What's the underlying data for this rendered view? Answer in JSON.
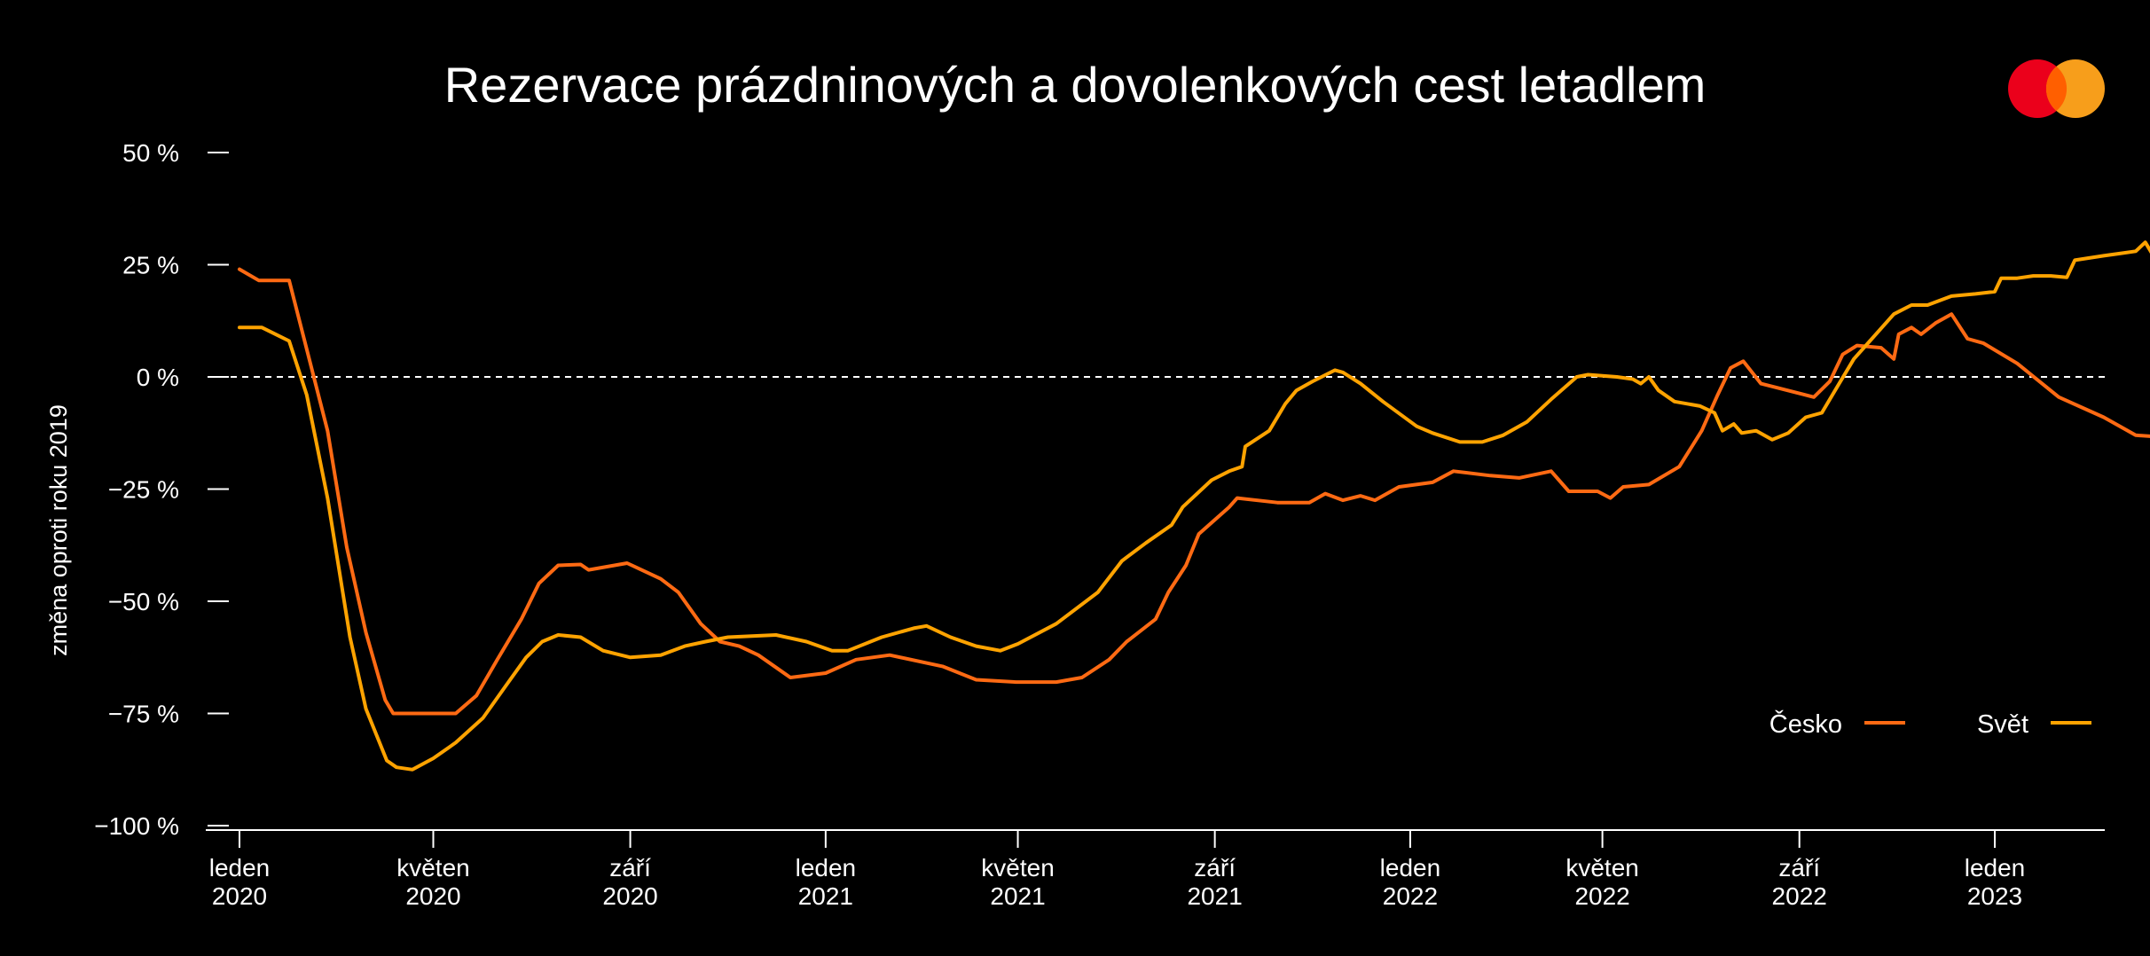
{
  "logo": {
    "name": "mastercard-logo",
    "colors": [
      "#eb001b",
      "#f79e1b",
      "#ff5f00"
    ]
  },
  "chart_data": {
    "type": "line",
    "title": "Rezervace prázdninových a dovolenkových cest letadlem",
    "ylabel": "změna oproti roku 2019",
    "xlabel": "",
    "ylim": [
      -100,
      50
    ],
    "xlim": [
      "2020-01-01",
      "2023-04-20"
    ],
    "y_ticks": [
      {
        "value": 50,
        "label": "50 %"
      },
      {
        "value": 25,
        "label": "25 %"
      },
      {
        "value": 0,
        "label": "0 %"
      },
      {
        "value": -25,
        "label": "−25 %"
      },
      {
        "value": -50,
        "label": "−50 %"
      },
      {
        "value": -75,
        "label": "−75 %"
      },
      {
        "value": -100,
        "label": "−100 %"
      }
    ],
    "x_ticks": [
      {
        "date": "2020-01-01",
        "month": "leden",
        "year": "2020"
      },
      {
        "date": "2020-05-01",
        "month": "květen",
        "year": "2020"
      },
      {
        "date": "2020-09-01",
        "month": "září",
        "year": "2020"
      },
      {
        "date": "2021-01-01",
        "month": "leden",
        "year": "2021"
      },
      {
        "date": "2021-05-01",
        "month": "květen",
        "year": "2021"
      },
      {
        "date": "2021-09-01",
        "month": "září",
        "year": "2021"
      },
      {
        "date": "2022-01-01",
        "month": "leden",
        "year": "2022"
      },
      {
        "date": "2022-05-01",
        "month": "květen",
        "year": "2022"
      },
      {
        "date": "2022-09-01",
        "month": "září",
        "year": "2022"
      },
      {
        "date": "2023-01-01",
        "month": "leden",
        "year": "2023"
      }
    ],
    "zero_line": "dashed",
    "grid": false,
    "legend": "bottom-right",
    "series": [
      {
        "name": "Česko",
        "color": "#ff6a13",
        "points": [
          [
            "2020-01-01",
            24
          ],
          [
            "2020-01-13",
            21.5
          ],
          [
            "2020-02-01",
            21.5
          ],
          [
            "2020-02-25",
            -12
          ],
          [
            "2020-03-08",
            -38
          ],
          [
            "2020-03-20",
            -57
          ],
          [
            "2020-04-01",
            -72
          ],
          [
            "2020-04-06",
            -75
          ],
          [
            "2020-05-01",
            -75
          ],
          [
            "2020-05-15",
            -75
          ],
          [
            "2020-05-28",
            -71
          ],
          [
            "2020-06-10",
            -63
          ],
          [
            "2020-06-25",
            -54
          ],
          [
            "2020-07-06",
            -46
          ],
          [
            "2020-07-18",
            -42
          ],
          [
            "2020-08-01",
            -41.8
          ],
          [
            "2020-08-06",
            -43
          ],
          [
            "2020-08-30",
            -41.5
          ],
          [
            "2020-09-20",
            -45
          ],
          [
            "2020-10-01",
            -48
          ],
          [
            "2020-10-15",
            -55
          ],
          [
            "2020-10-27",
            -59
          ],
          [
            "2020-11-08",
            -60
          ],
          [
            "2020-11-20",
            -62
          ],
          [
            "2020-12-10",
            -67
          ],
          [
            "2021-01-01",
            -66
          ],
          [
            "2021-01-20",
            -63
          ],
          [
            "2021-02-10",
            -62
          ],
          [
            "2021-03-15",
            -64.5
          ],
          [
            "2021-04-05",
            -67.5
          ],
          [
            "2021-04-30",
            -68
          ],
          [
            "2021-05-25",
            -68
          ],
          [
            "2021-06-10",
            -67
          ],
          [
            "2021-06-27",
            -63
          ],
          [
            "2021-07-08",
            -59
          ],
          [
            "2021-07-26",
            -54
          ],
          [
            "2021-08-03",
            -48
          ],
          [
            "2021-08-14",
            -42
          ],
          [
            "2021-08-22",
            -35
          ],
          [
            "2021-09-10",
            -29
          ],
          [
            "2021-09-15",
            -27
          ],
          [
            "2021-10-10",
            -28
          ],
          [
            "2021-10-30",
            -28
          ],
          [
            "2021-11-09",
            -26
          ],
          [
            "2021-11-20",
            -27.5
          ],
          [
            "2021-12-01",
            -26.5
          ],
          [
            "2021-12-10",
            -27.5
          ],
          [
            "2021-12-25",
            -24.5
          ],
          [
            "2022-01-15",
            -23.5
          ],
          [
            "2022-01-28",
            -21
          ],
          [
            "2022-02-20",
            -22
          ],
          [
            "2022-03-10",
            -22.5
          ],
          [
            "2022-03-30",
            -21
          ],
          [
            "2022-04-10",
            -25.5
          ],
          [
            "2022-04-28",
            -25.5
          ],
          [
            "2022-05-06",
            -27
          ],
          [
            "2022-05-14",
            -24.5
          ],
          [
            "2022-05-30",
            -24
          ],
          [
            "2022-06-18",
            -20
          ],
          [
            "2022-07-02",
            -12
          ],
          [
            "2022-07-12",
            -4
          ],
          [
            "2022-07-20",
            2
          ],
          [
            "2022-07-28",
            3.5
          ],
          [
            "2022-08-08",
            -1.5
          ],
          [
            "2022-09-10",
            -4.5
          ],
          [
            "2022-09-20",
            -1
          ],
          [
            "2022-09-28",
            5
          ],
          [
            "2022-10-07",
            7
          ],
          [
            "2022-10-22",
            6.5
          ],
          [
            "2022-10-30",
            4
          ],
          [
            "2022-11-02",
            9.5
          ],
          [
            "2022-11-10",
            11
          ],
          [
            "2022-11-16",
            9.5
          ],
          [
            "2022-11-25",
            12
          ],
          [
            "2022-12-05",
            14
          ],
          [
            "2022-12-15",
            8.5
          ],
          [
            "2022-12-25",
            7.5
          ],
          [
            "2023-01-15",
            3
          ],
          [
            "2023-02-10",
            -4.5
          ],
          [
            "2023-03-10",
            -9
          ],
          [
            "2023-03-30",
            -13
          ],
          [
            "2023-04-20",
            -13.5
          ]
        ]
      },
      {
        "name": "Svět",
        "color": "#ffa300",
        "points": [
          [
            "2020-01-01",
            11
          ],
          [
            "2020-01-15",
            11
          ],
          [
            "2020-02-01",
            8
          ],
          [
            "2020-02-12",
            -4
          ],
          [
            "2020-02-25",
            -27
          ],
          [
            "2020-03-10",
            -58
          ],
          [
            "2020-03-20",
            -74
          ],
          [
            "2020-04-02",
            -85.5
          ],
          [
            "2020-04-08",
            -87
          ],
          [
            "2020-04-18",
            -87.5
          ],
          [
            "2020-05-01",
            -85
          ],
          [
            "2020-05-15",
            -81.5
          ],
          [
            "2020-06-01",
            -76
          ],
          [
            "2020-06-15",
            -69
          ],
          [
            "2020-06-28",
            -62.5
          ],
          [
            "2020-07-08",
            -59
          ],
          [
            "2020-07-18",
            -57.5
          ],
          [
            "2020-08-01",
            -58
          ],
          [
            "2020-08-15",
            -61
          ],
          [
            "2020-09-01",
            -62.5
          ],
          [
            "2020-09-20",
            -62
          ],
          [
            "2020-10-05",
            -60
          ],
          [
            "2020-10-18",
            -59
          ],
          [
            "2020-11-01",
            -58
          ],
          [
            "2020-12-01",
            -57.5
          ],
          [
            "2020-12-20",
            -59
          ],
          [
            "2021-01-05",
            -61
          ],
          [
            "2021-01-15",
            -61
          ],
          [
            "2021-02-05",
            -58
          ],
          [
            "2021-02-25",
            -56
          ],
          [
            "2021-03-05",
            -55.5
          ],
          [
            "2021-03-20",
            -58
          ],
          [
            "2021-04-05",
            -60
          ],
          [
            "2021-04-20",
            -61
          ],
          [
            "2021-05-01",
            -59.5
          ],
          [
            "2021-05-25",
            -55
          ],
          [
            "2021-06-20",
            -48
          ],
          [
            "2021-07-05",
            -41
          ],
          [
            "2021-07-20",
            -37
          ],
          [
            "2021-08-05",
            -33
          ],
          [
            "2021-08-12",
            -29
          ],
          [
            "2021-08-30",
            -23
          ],
          [
            "2021-09-10",
            -21
          ],
          [
            "2021-09-18",
            -20
          ],
          [
            "2021-09-20",
            -15.5
          ],
          [
            "2021-10-05",
            -12
          ],
          [
            "2021-10-15",
            -6
          ],
          [
            "2021-10-22",
            -3
          ],
          [
            "2021-11-01",
            -1
          ],
          [
            "2021-11-15",
            1.5
          ],
          [
            "2021-11-20",
            1
          ],
          [
            "2021-12-01",
            -1.5
          ],
          [
            "2021-12-15",
            -5.5
          ],
          [
            "2022-01-05",
            -11
          ],
          [
            "2022-01-15",
            -12.5
          ],
          [
            "2022-02-01",
            -14.5
          ],
          [
            "2022-02-15",
            -14.5
          ],
          [
            "2022-02-28",
            -13
          ],
          [
            "2022-03-15",
            -10
          ],
          [
            "2022-03-30",
            -5
          ],
          [
            "2022-04-15",
            0
          ],
          [
            "2022-04-22",
            0.5
          ],
          [
            "2022-05-10",
            0
          ],
          [
            "2022-05-20",
            -0.5
          ],
          [
            "2022-05-25",
            -1.5
          ],
          [
            "2022-05-30",
            0
          ],
          [
            "2022-06-05",
            -3
          ],
          [
            "2022-06-15",
            -5.5
          ],
          [
            "2022-07-01",
            -6.5
          ],
          [
            "2022-07-10",
            -8
          ],
          [
            "2022-07-15",
            -12
          ],
          [
            "2022-07-22",
            -10.5
          ],
          [
            "2022-07-27",
            -12.5
          ],
          [
            "2022-08-05",
            -12
          ],
          [
            "2022-08-15",
            -14
          ],
          [
            "2022-08-25",
            -12.5
          ],
          [
            "2022-09-05",
            -9
          ],
          [
            "2022-09-15",
            -8
          ],
          [
            "2022-09-25",
            -2
          ],
          [
            "2022-10-05",
            4
          ],
          [
            "2022-10-15",
            8
          ],
          [
            "2022-10-30",
            14
          ],
          [
            "2022-11-10",
            16
          ],
          [
            "2022-11-20",
            16
          ],
          [
            "2022-12-05",
            18
          ],
          [
            "2022-12-20",
            18.5
          ],
          [
            "2023-01-01",
            19
          ],
          [
            "2023-01-05",
            22
          ],
          [
            "2023-01-15",
            22
          ],
          [
            "2023-01-25",
            22.5
          ],
          [
            "2023-02-05",
            22.5
          ],
          [
            "2023-02-15",
            22.2
          ],
          [
            "2023-02-20",
            26
          ],
          [
            "2023-03-01",
            26.5
          ],
          [
            "2023-03-10",
            27
          ],
          [
            "2023-03-20",
            27.5
          ],
          [
            "2023-03-30",
            28
          ],
          [
            "2023-04-05",
            30
          ],
          [
            "2023-04-10",
            27
          ],
          [
            "2023-04-20",
            27.8
          ]
        ]
      }
    ]
  }
}
